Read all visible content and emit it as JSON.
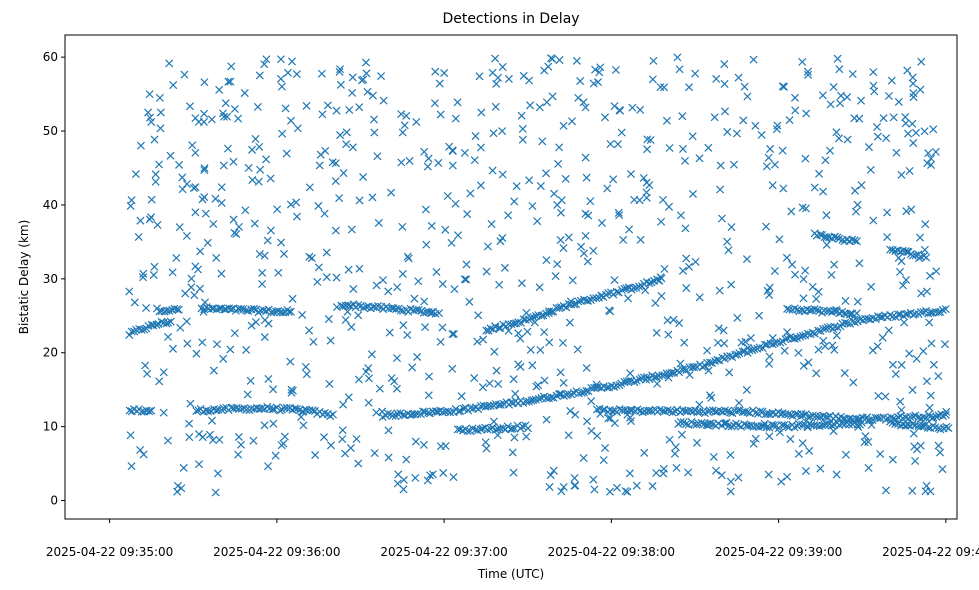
{
  "chart_data": {
    "type": "scatter",
    "title": "Detections in Delay",
    "xlabel": "Time (UTC)",
    "ylabel": "Bistatic Delay (km)",
    "x_unit": "seconds after 2025-04-22 09:35:00",
    "xlim": [
      -16,
      304
    ],
    "ylim": [
      -2.5,
      63
    ],
    "x_ticks": [
      0,
      60,
      120,
      180,
      240,
      300
    ],
    "x_tick_labels": [
      "2025-04-22 09:35:00",
      "2025-04-22 09:36:00",
      "2025-04-22 09:37:00",
      "2025-04-22 09:38:00",
      "2025-04-22 09:39:00",
      "2025-04-22 09:40:00"
    ],
    "y_ticks": [
      0,
      10,
      20,
      30,
      40,
      50,
      60
    ],
    "y_tick_labels": [
      "0",
      "10",
      "20",
      "30",
      "40",
      "50",
      "60"
    ],
    "marker": "x",
    "marker_color": "#1f77b4",
    "grid": false,
    "tracks": [
      {
        "points": [
          [
            7,
            22.5
          ],
          [
            10,
            23.0
          ],
          [
            14,
            23.5
          ],
          [
            18,
            24.0
          ],
          [
            22,
            24.2
          ]
        ]
      },
      {
        "points": [
          [
            7,
            12.2
          ],
          [
            15,
            12.2
          ]
        ]
      },
      {
        "points": [
          [
            17,
            25.8
          ],
          [
            25,
            25.8
          ]
        ]
      },
      {
        "points": [
          [
            33,
            26.0
          ],
          [
            45,
            25.8
          ],
          [
            60,
            25.6
          ],
          [
            65,
            25.4
          ]
        ]
      },
      {
        "points": [
          [
            31,
            12.2
          ],
          [
            55,
            12.5
          ],
          [
            70,
            12.2
          ],
          [
            80,
            11.5
          ]
        ]
      },
      {
        "points": [
          [
            83,
            26.5
          ],
          [
            100,
            26.0
          ],
          [
            115,
            25.5
          ],
          [
            118,
            25.4
          ]
        ]
      },
      {
        "points": [
          [
            98,
            11.5
          ],
          [
            125,
            12.2
          ],
          [
            150,
            13.5
          ],
          [
            180,
            15.5
          ],
          [
            210,
            18.0
          ],
          [
            240,
            21.5
          ],
          [
            270,
            24.5
          ],
          [
            300,
            25.8
          ]
        ]
      },
      {
        "points": [
          [
            135,
            23.0
          ],
          [
            150,
            24.5
          ],
          [
            165,
            26.5
          ],
          [
            185,
            28.5
          ],
          [
            198,
            30.0
          ]
        ]
      },
      {
        "points": [
          [
            175,
            12.2
          ],
          [
            230,
            12.0
          ],
          [
            270,
            11.0
          ],
          [
            300,
            11.5
          ]
        ]
      },
      {
        "points": [
          [
            205,
            10.5
          ],
          [
            240,
            10.0
          ],
          [
            270,
            10.5
          ]
        ]
      },
      {
        "points": [
          [
            243,
            26.0
          ],
          [
            260,
            25.5
          ],
          [
            268,
            25.2
          ]
        ]
      },
      {
        "points": [
          [
            253,
            36.0
          ],
          [
            268,
            35.0
          ]
        ]
      },
      {
        "points": [
          [
            280,
            34.0
          ],
          [
            293,
            33.0
          ]
        ]
      },
      {
        "points": [
          [
            280,
            10.5
          ],
          [
            300,
            9.8
          ]
        ]
      },
      {
        "points": [
          [
            125,
            9.5
          ],
          [
            140,
            9.8
          ],
          [
            150,
            10.0
          ]
        ]
      }
    ],
    "noise_points": 900
  }
}
